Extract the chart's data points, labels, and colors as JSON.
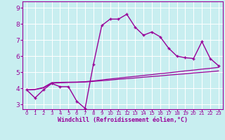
{
  "xlabel": "Windchill (Refroidissement éolien,°C)",
  "background_color": "#c8eef0",
  "line_color": "#990099",
  "grid_color": "#ffffff",
  "ylim": [
    2.7,
    9.4
  ],
  "xlim": [
    -0.5,
    23.5
  ],
  "yticks": [
    3,
    4,
    5,
    6,
    7,
    8,
    9
  ],
  "xticks": [
    0,
    1,
    2,
    3,
    4,
    5,
    6,
    7,
    8,
    9,
    10,
    11,
    12,
    13,
    14,
    15,
    16,
    17,
    18,
    19,
    20,
    21,
    22,
    23
  ],
  "main_y": [
    3.9,
    3.4,
    3.9,
    4.3,
    4.1,
    4.1,
    3.2,
    2.75,
    5.5,
    7.9,
    8.3,
    8.3,
    8.6,
    7.8,
    7.3,
    7.5,
    7.2,
    6.5,
    6.0,
    5.9,
    5.85,
    6.9,
    5.85,
    5.4
  ],
  "trend1_y": [
    3.9,
    3.92,
    4.02,
    4.32,
    4.34,
    4.36,
    4.37,
    4.39,
    4.43,
    4.47,
    4.51,
    4.56,
    4.6,
    4.64,
    4.69,
    4.73,
    4.77,
    4.82,
    4.86,
    4.9,
    4.95,
    4.99,
    5.03,
    5.08
  ],
  "trend2_y": [
    3.9,
    3.93,
    4.05,
    4.35,
    4.37,
    4.38,
    4.39,
    4.41,
    4.46,
    4.52,
    4.58,
    4.63,
    4.69,
    4.74,
    4.8,
    4.85,
    4.91,
    4.96,
    5.02,
    5.08,
    5.13,
    5.19,
    5.24,
    5.3
  ]
}
